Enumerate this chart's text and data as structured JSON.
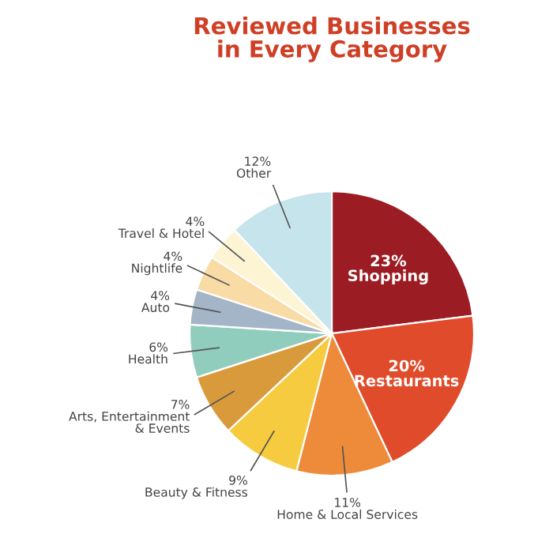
{
  "chart_data": {
    "type": "pie",
    "title": "Reviewed Businesses\nin Every Category",
    "categories": [
      "Shopping",
      "Restaurants",
      "Home & Local Services",
      "Beauty & Fitness",
      "Arts, Entertainment\n& Events",
      "Health",
      "Auto",
      "Nightlife",
      "Travel & Hotel",
      "Other"
    ],
    "values": [
      23,
      20,
      11,
      9,
      7,
      6,
      4,
      4,
      4,
      12
    ],
    "value_labels": [
      "23%",
      "20%",
      "11%",
      "9%",
      "7%",
      "6%",
      "4%",
      "4%",
      "4%",
      "12%"
    ],
    "colors": [
      "#9b1c22",
      "#e04b2b",
      "#ee8b3b",
      "#f7cb3f",
      "#d99a3c",
      "#91cdbd",
      "#a3b5c6",
      "#f8dba5",
      "#fdf4d4",
      "#c6e4ec"
    ],
    "legend": false
  }
}
